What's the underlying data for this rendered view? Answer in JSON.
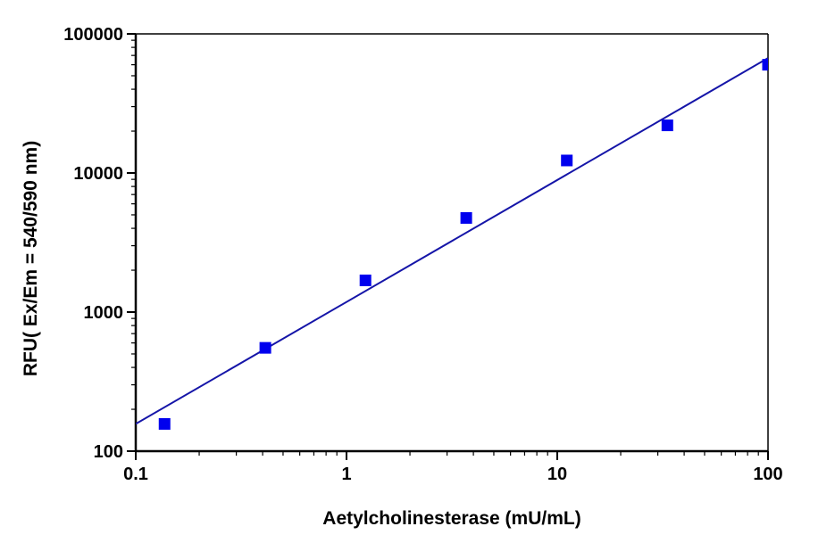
{
  "chart_data": {
    "type": "scatter",
    "title": "",
    "xlabel": "Aetylcholinesterase (mU/mL)",
    "ylabel": "RFU( Ex/Em = 540/590 nm)",
    "xscale": "log",
    "yscale": "log",
    "xlim": [
      0.1,
      100
    ],
    "ylim": [
      100,
      100000
    ],
    "xticks": [
      0.1,
      1,
      10,
      100
    ],
    "xtick_labels": [
      "0.1",
      "1",
      "10",
      "100"
    ],
    "yticks": [
      100,
      1000,
      10000,
      100000
    ],
    "ytick_labels": [
      "100",
      "1000",
      "10000",
      "100000"
    ],
    "grid": false,
    "legend": "none",
    "series": [
      {
        "type": "scatter",
        "marker": "square",
        "color": "#0000ee",
        "x": [
          0.137,
          0.412,
          1.23,
          3.7,
          11.1,
          33.3,
          100
        ],
        "y": [
          157,
          553,
          1690,
          4750,
          12300,
          22000,
          60000
        ]
      },
      {
        "type": "line",
        "fit": "linear regression (log-log)",
        "color": "#1515a8",
        "x": [
          0.1,
          100
        ],
        "y": [
          157,
          67000
        ]
      }
    ]
  }
}
